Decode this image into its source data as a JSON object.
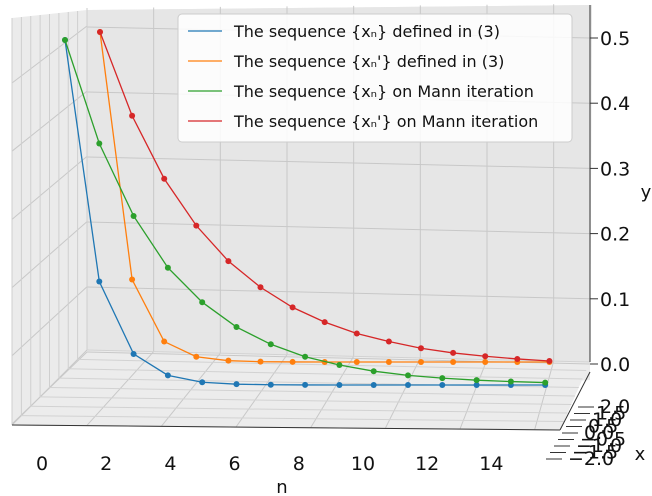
{
  "chart_data": {
    "type": "line",
    "projection": "3d",
    "xlabel": "n",
    "ylabel": "y",
    "zlabel": "x",
    "n_ticks": [
      0,
      2,
      4,
      6,
      8,
      10,
      12,
      14
    ],
    "y_ticks": [
      0.0,
      0.1,
      0.2,
      0.3,
      0.4,
      0.5
    ],
    "y_tick_labels": [
      "0.0",
      "0.1",
      "0.2",
      "0.3",
      "0.4",
      "0.5"
    ],
    "x_tick_labels": [
      "2.0",
      "1.5",
      "1.0",
      "0.5",
      "0.0",
      "−0.5",
      "−1.0",
      "−1.5",
      "−2.0"
    ],
    "nlim": [
      0,
      15
    ],
    "ylim": [
      0,
      0.5
    ],
    "grid": true,
    "legend_position": "upper-right",
    "series": [
      {
        "name": "The sequence {x_n} defined in (3)",
        "legend_name": "The sequence {xₙ} defined in (3)",
        "color": "#1f77b4",
        "values": [
          0.5,
          0.15,
          0.045,
          0.014,
          0.004,
          0.0012,
          0.0004,
          0.0001,
          4e-05,
          1e-05,
          0.0,
          0.0,
          0.0,
          0.0,
          0.0
        ]
      },
      {
        "name": "The sequence {x'_n} defined in (3)",
        "legend_name": "The sequence {xₙ'} defined in (3)",
        "color": "#ff7f0e",
        "values": [
          0.5,
          0.125,
          0.031,
          0.008,
          0.002,
          0.0005,
          0.0001,
          0.0,
          0.0,
          0.0,
          0.0,
          0.0,
          0.0,
          0.0,
          0.0
        ]
      },
      {
        "name": "The sequence {x_n} on Mann iteration",
        "legend_name": "The sequence {xₙ} on Mann iteration",
        "color": "#2ca02c",
        "values": [
          0.5,
          0.35,
          0.245,
          0.17,
          0.12,
          0.084,
          0.059,
          0.041,
          0.029,
          0.02,
          0.014,
          0.01,
          0.007,
          0.005,
          0.0035
        ]
      },
      {
        "name": "The sequence {x'_n} on Mann iteration",
        "legend_name": "The sequence {xₙ'} on Mann iteration",
        "color": "#d62728",
        "values": [
          0.5,
          0.375,
          0.281,
          0.211,
          0.158,
          0.119,
          0.089,
          0.067,
          0.05,
          0.038,
          0.028,
          0.021,
          0.016,
          0.012,
          0.009
        ]
      }
    ]
  }
}
